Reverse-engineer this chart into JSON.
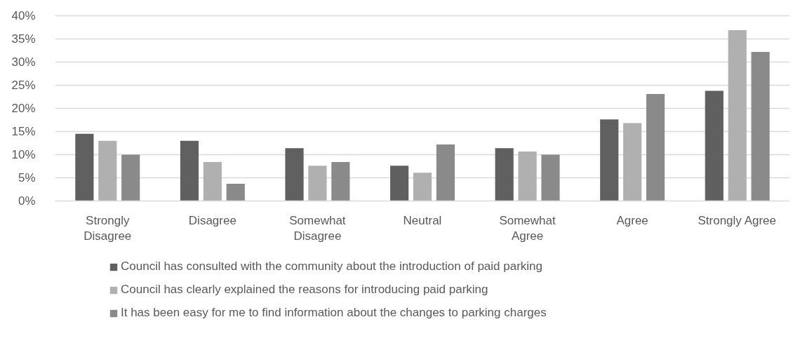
{
  "chart_data": {
    "type": "bar",
    "categories": [
      "Strongly Disagree",
      "Disagree",
      "Somewhat Disagree",
      "Neutral",
      "Somewhat Agree",
      "Agree",
      "Strongly Agree"
    ],
    "series": [
      {
        "name": "Council has consulted with the community about the introduction of paid parking",
        "color": "#606060",
        "values": [
          14.5,
          13.0,
          11.4,
          7.6,
          11.4,
          17.6,
          23.8
        ]
      },
      {
        "name": "Council has clearly explained the reasons for introducing paid parking",
        "color": "#b0b0b0",
        "values": [
          13.0,
          8.4,
          7.6,
          6.1,
          10.7,
          16.8,
          36.9
        ]
      },
      {
        "name": "It has been easy for me to find information about the changes to parking charges",
        "color": "#8a8a8a",
        "values": [
          10.0,
          3.7,
          8.4,
          12.2,
          10.0,
          23.1,
          32.2
        ]
      }
    ],
    "ylim": [
      0,
      40
    ],
    "yticks": [
      {
        "value": 0,
        "label": "0%"
      },
      {
        "value": 5,
        "label": "5%"
      },
      {
        "value": 10,
        "label": "10%"
      },
      {
        "value": 15,
        "label": "15%"
      },
      {
        "value": 20,
        "label": "20%"
      },
      {
        "value": 25,
        "label": "25%"
      },
      {
        "value": 30,
        "label": "30%"
      },
      {
        "value": 35,
        "label": "35%"
      },
      {
        "value": 40,
        "label": "40%"
      }
    ],
    "grid": "y",
    "legend": "bottom"
  }
}
